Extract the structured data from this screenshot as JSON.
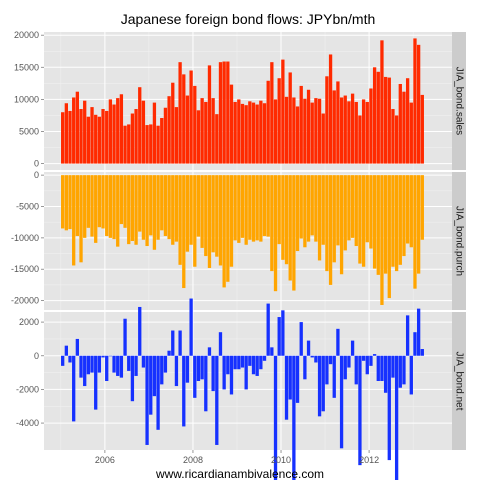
{
  "chart_data": {
    "type": "bar",
    "title": "Japanese foreign bond flows: JPYbn/mth",
    "xlabel": "",
    "ylabel": "",
    "credit": "www.ricardianambivalence.com",
    "x_start": "2005-01",
    "x_end": "2013-06",
    "x_ticks": [
      "2006",
      "2008",
      "2010",
      "2012"
    ],
    "x_tick_years": [
      2006,
      2008,
      2010,
      2012
    ],
    "grid": true,
    "facets": [
      {
        "strip": "JIA_bond.sales",
        "color": "#ff2a00",
        "ylim": [
          -1000,
          20500
        ],
        "yticks": [
          0,
          5000,
          10000,
          15000,
          20000
        ],
        "values": [
          8000,
          9400,
          8200,
          10300,
          11200,
          8500,
          9800,
          7300,
          8800,
          7600,
          7300,
          8500,
          8200,
          10000,
          9200,
          10200,
          10800,
          5900,
          6100,
          7800,
          8500,
          11900,
          9800,
          6000,
          6100,
          9500,
          5900,
          7100,
          8700,
          10500,
          12600,
          8800,
          15800,
          13900,
          10600,
          14500,
          12100,
          8300,
          10200,
          9600,
          15300,
          10200,
          7700,
          15800,
          15900,
          15900,
          12300,
          9600,
          10000,
          9300,
          9100,
          9700,
          9500,
          9200,
          9800,
          9400,
          12900,
          15800,
          10000,
          13300,
          16200,
          10400,
          14200,
          10300,
          8900,
          12100,
          10100,
          11500,
          9500,
          10200,
          10100,
          7800,
          13600,
          17000,
          11400,
          12800,
          10300,
          10600,
          9700,
          10900,
          9600,
          7500,
          10000,
          9600,
          11700,
          15000,
          14300,
          19200,
          13500,
          13400,
          8500,
          7500,
          12400,
          11200,
          13300,
          9500,
          19500,
          18500,
          10700
        ]
      },
      {
        "strip": "JIA_bond.purch",
        "color": "#ffa500",
        "ylim": [
          -21500,
          500
        ],
        "yticks": [
          0,
          -5000,
          -10000,
          -15000,
          -20000
        ],
        "values": [
          -8500,
          -8800,
          -8600,
          -14400,
          -9700,
          -13900,
          -10000,
          -8400,
          -9800,
          -10800,
          -8300,
          -8500,
          -9700,
          -10000,
          -10200,
          -11400,
          -7800,
          -8400,
          -11000,
          -10500,
          -11100,
          -9000,
          -10300,
          -11300,
          -9600,
          -11900,
          -10300,
          -8800,
          -9700,
          -10200,
          -11100,
          -10600,
          -14300,
          -18000,
          -12200,
          -11100,
          -14600,
          -9800,
          -11600,
          -12900,
          -14800,
          -12300,
          -13000,
          -14400,
          -17900,
          -17000,
          -14600,
          -10400,
          -10800,
          -10000,
          -11100,
          -10300,
          -10600,
          -10400,
          -10600,
          -9700,
          -9800,
          -15300,
          -18500,
          -11000,
          -13500,
          -14200,
          -16800,
          -18400,
          -12100,
          -10100,
          -11500,
          -10600,
          -9600,
          -10600,
          -13600,
          -11100,
          -15300,
          -17500,
          -13900,
          -11200,
          -15800,
          -12000,
          -10400,
          -10000,
          -11300,
          -14100,
          -14600,
          -10700,
          -11700,
          -14900,
          -15900,
          -20700,
          -15700,
          -19600,
          -14600,
          -15300,
          -14300,
          -12900,
          -10900,
          -11500,
          -18100,
          -15700,
          -10300
        ]
      },
      {
        "strip": "JIA_bond.net",
        "color": "#1631ff",
        "ylim": [
          -5600,
          2600
        ],
        "yticks": [
          2000,
          0,
          -2000,
          -4000
        ],
        "values": [
          -600,
          600,
          -400,
          -3900,
          1000,
          -1300,
          -1800,
          -1100,
          -1000,
          -3200,
          -1000,
          -100,
          -1500,
          0,
          -1000,
          -1200,
          -1300,
          2200,
          -900,
          -2700,
          -1200,
          2900,
          -700,
          -5300,
          -3500,
          -2400,
          -4400,
          -1700,
          -1000,
          300,
          1500,
          -1800,
          1500,
          -4200,
          -1600,
          3400,
          -2500,
          -1500,
          -1400,
          -3300,
          500,
          -2100,
          -5300,
          1400,
          -2000,
          -1100,
          -2300,
          -800,
          -800,
          -700,
          -2000,
          -600,
          -1100,
          -1200,
          -800,
          -300,
          3100,
          500,
          -8500,
          2300,
          2700,
          -3800,
          -2600,
          -8100,
          -2800,
          2000,
          -1400,
          900,
          -100,
          -400,
          -3600,
          -3300,
          -1700,
          -500,
          -2500,
          1600,
          -5500,
          -1400,
          -700,
          900,
          -1700,
          -6500,
          -300,
          -1100,
          -600,
          100,
          -1500,
          -1500,
          -2200,
          -6200,
          -1300,
          -7800,
          -1900,
          -1700,
          2400,
          -2300,
          1400,
          2800,
          400
        ]
      }
    ]
  }
}
